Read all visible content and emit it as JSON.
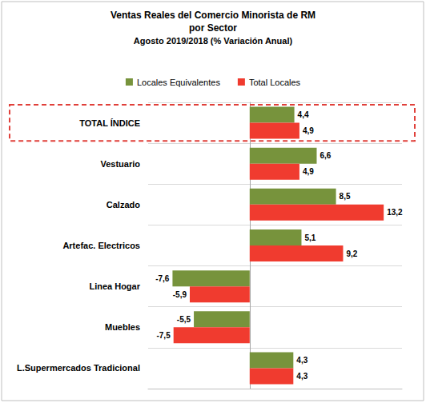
{
  "chart_data": {
    "type": "bar",
    "title": "Ventas Reales del Comercio Minorista de RM\npor Sector",
    "subtitle": "Agosto 2019/2018 (% Variación Anual)",
    "orientation": "horizontal",
    "categories": [
      "TOTAL ÍNDICE",
      "Vestuario",
      "Calzado",
      "Artefac. Electricos",
      "Linea Hogar",
      "Muebles",
      "L.Supermercados Tradicional"
    ],
    "series": [
      {
        "name": "Locales Equivalentes",
        "color": "#77933C",
        "values": [
          4.4,
          6.6,
          8.5,
          5.1,
          -7.6,
          -5.5,
          4.3
        ],
        "value_labels": [
          "4,4",
          "6,6",
          "8,5",
          "5,1",
          "-7,6",
          "-5,5",
          "4,3"
        ]
      },
      {
        "name": "Total Locales",
        "color": "#F03B2F",
        "values": [
          4.9,
          4.9,
          13.2,
          9.2,
          -5.9,
          -7.5,
          4.3
        ],
        "value_labels": [
          "4,9",
          "4,9",
          "13,2",
          "9,2",
          "-5,9",
          "-7,5",
          "4,3"
        ]
      }
    ],
    "xlim": [
      -10,
      15
    ],
    "grid": true,
    "legend": "top",
    "data_labels": true,
    "tick_labels": "y"
  }
}
